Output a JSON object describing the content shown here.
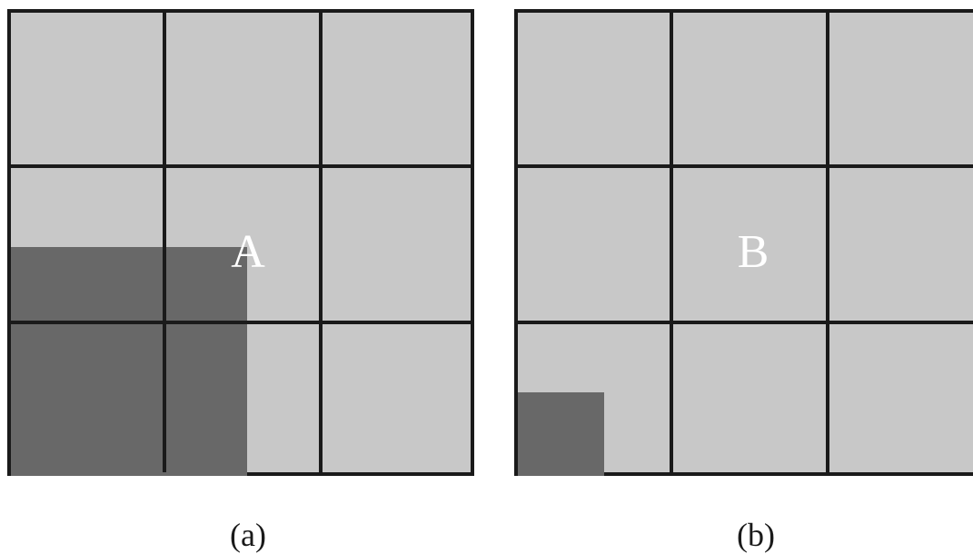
{
  "panels": [
    {
      "label": "A",
      "caption": "(a)"
    },
    {
      "label": "B",
      "caption": "(b)"
    }
  ],
  "colors": {
    "cell": "#c8c8c8",
    "shaded": "#686868",
    "grid": "#1a1a1a",
    "label": "#ffffff"
  }
}
